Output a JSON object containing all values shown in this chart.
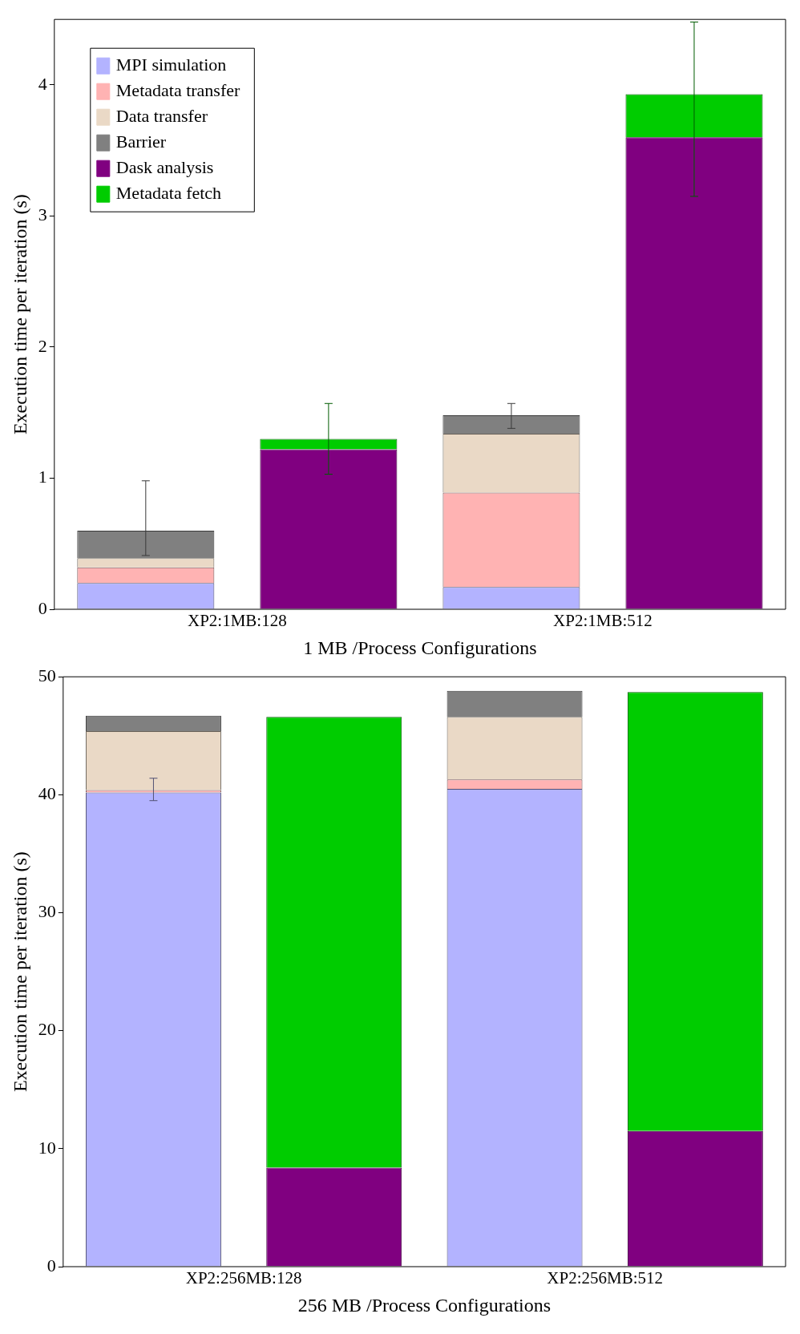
{
  "chart_data": [
    {
      "type": "bar",
      "stacked": true,
      "xlabel": "1 MB /Process Configurations",
      "ylabel": "Execution time per iteration (s)",
      "categories": [
        "XP2:1MB:128",
        null,
        "XP2:1MB:512",
        null
      ],
      "ylim": [
        0,
        4.5
      ],
      "yticks": [
        0,
        1,
        2,
        3,
        4
      ],
      "legend": "top left",
      "grid": false,
      "series": [
        {
          "name": "MPI simulation",
          "color": "#b3b3ff",
          "values": [
            0.2,
            null,
            0.17,
            null
          ]
        },
        {
          "name": "Metadata transfer",
          "color": "#ffb3b3",
          "values": [
            0.12,
            null,
            0.72,
            null
          ]
        },
        {
          "name": "Data transfer",
          "color": "#ead9c6",
          "values": [
            0.07,
            null,
            0.45,
            null
          ]
        },
        {
          "name": "Barrier",
          "color": "#808080",
          "values": [
            0.21,
            null,
            0.14,
            null
          ],
          "errors": [
            [
              0.41,
              0.98
            ],
            null,
            [
              1.38,
              1.57
            ],
            null
          ]
        },
        {
          "name": "Dask analysis",
          "color": "#800080",
          "values": [
            null,
            1.22,
            null,
            3.6
          ]
        },
        {
          "name": "Metadata fetch",
          "color": "#00cc00",
          "values": [
            null,
            0.08,
            null,
            0.33
          ],
          "errors": [
            null,
            [
              1.03,
              1.57
            ],
            null,
            [
              3.15,
              4.48
            ]
          ]
        }
      ]
    },
    {
      "type": "bar",
      "stacked": true,
      "xlabel": "256 MB /Process Configurations",
      "ylabel": "Execution time per iteration (s)",
      "categories": [
        "XP2:256MB:128",
        null,
        "XP2:256MB:512",
        null
      ],
      "ylim": [
        0,
        50
      ],
      "yticks": [
        0,
        10,
        20,
        30,
        40,
        50
      ],
      "grid": false,
      "series": [
        {
          "color": "#b3b3ff",
          "values": [
            40.2,
            null,
            40.5,
            null
          ],
          "errors": [
            [
              39.5,
              41.4
            ],
            null,
            null,
            null
          ]
        },
        {
          "color": "#ffb3b3",
          "values": [
            0.2,
            null,
            0.8,
            null
          ]
        },
        {
          "color": "#ead9c6",
          "values": [
            5.0,
            null,
            5.3,
            null
          ]
        },
        {
          "color": "#808080",
          "values": [
            1.3,
            null,
            2.2,
            null
          ]
        },
        {
          "color": "#800080",
          "values": [
            null,
            8.4,
            null,
            11.5
          ]
        },
        {
          "color": "#00cc00",
          "values": [
            null,
            38.2,
            null,
            37.2
          ]
        }
      ]
    }
  ]
}
